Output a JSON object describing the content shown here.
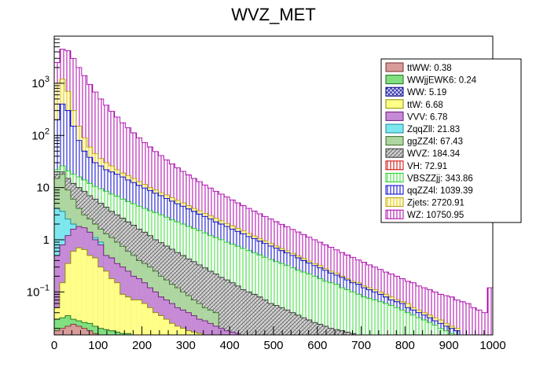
{
  "chart_data": {
    "type": "area",
    "title": "WVZ_MET",
    "xlabel": "",
    "ylabel": "",
    "xlim": [
      0,
      1000
    ],
    "ylim": [
      0.015,
      8000
    ],
    "y_scale": "log",
    "stacked": true,
    "bin_width": 12.5,
    "legend_position": "top-right",
    "x_ticks": [
      "0",
      "100",
      "200",
      "300",
      "400",
      "500",
      "600",
      "700",
      "800",
      "900",
      "1000"
    ],
    "y_ticks": [
      {
        "value": 0.1,
        "base": "10",
        "exp": "−1"
      },
      {
        "value": 1,
        "base": "1",
        "exp": ""
      },
      {
        "value": 10,
        "base": "10",
        "exp": ""
      },
      {
        "value": 100,
        "base": "10",
        "exp": "2"
      },
      {
        "value": 1000,
        "base": "10",
        "exp": "3"
      }
    ],
    "series": [
      {
        "name": "ttWW",
        "yield_label": "0.38",
        "fill": "#d99a9a",
        "stroke": "#7a2e2e",
        "pattern": "solid"
      },
      {
        "name": "WWjjEWK6",
        "yield_label": "0.24",
        "fill": "#80e080",
        "stroke": "#1a6e1a",
        "pattern": "solid"
      },
      {
        "name": "WW",
        "yield_label": "5.19",
        "fill": "#c8c8ff",
        "stroke": "#000080",
        "pattern": "hatch-blue"
      },
      {
        "name": "ttW",
        "yield_label": "6.68",
        "fill": "#ffff88",
        "stroke": "#8a8a00",
        "pattern": "solid"
      },
      {
        "name": "VVV",
        "yield_label": "6.78",
        "fill": "#c78ad6",
        "stroke": "#6a1a7a",
        "pattern": "solid"
      },
      {
        "name": "ZqqZll",
        "yield_label": "21.83",
        "fill": "#7ee6ee",
        "stroke": "#1a8a9a",
        "pattern": "solid"
      },
      {
        "name": "ggZZ4l",
        "yield_label": "67.43",
        "fill": "#aed6a0",
        "stroke": "#3a6a2a",
        "pattern": "solid"
      },
      {
        "name": "WVZ",
        "yield_label": "184.34",
        "fill": "#c9c9c9",
        "stroke": "#333333",
        "pattern": "hatch-grey"
      },
      {
        "name": "VH",
        "yield_label": "72.91",
        "fill": "#ffffff",
        "stroke": "#cc0000",
        "pattern": "vlines-red"
      },
      {
        "name": "VBSZZjj",
        "yield_label": "343.86",
        "fill": "#ffffff",
        "stroke": "#22cc22",
        "pattern": "vlines-green"
      },
      {
        "name": "qqZZ4l",
        "yield_label": "1039.39",
        "fill": "#ffffff",
        "stroke": "#0000cc",
        "pattern": "vlines-blue"
      },
      {
        "name": "Zjets",
        "yield_label": "2720.91",
        "fill": "#fff5c0",
        "stroke": "#b8a000",
        "pattern": "vlines-yellow"
      },
      {
        "name": "WZ",
        "yield_label": "10750.95",
        "fill": "#ffffff",
        "stroke": "#aa00aa",
        "pattern": "vlines-magenta"
      }
    ],
    "stack_tops": {
      "ttWW": [
        0.018,
        0.02,
        0.022,
        0.024,
        0.022,
        0.02,
        0.018,
        0.016,
        0.015
      ],
      "WWjjEWK6": [
        0.03,
        0.032,
        0.035,
        0.03,
        0.028,
        0.026,
        0.025,
        0.022,
        0.02,
        0.019,
        0.018,
        0.017,
        0.016,
        0.016,
        0.015,
        0.015,
        0.015,
        0.015,
        0.015,
        0.015,
        0.015,
        0.015
      ],
      "ttW": [
        0.05,
        0.15,
        0.35,
        0.6,
        0.7,
        0.65,
        0.5,
        0.45,
        0.3,
        0.25,
        0.18,
        0.15,
        0.09,
        0.08,
        0.07,
        0.07,
        0.06,
        0.05,
        0.04,
        0.035,
        0.03,
        0.025,
        0.022,
        0.02,
        0.018,
        0.017,
        0.016,
        0.015
      ],
      "VVV": [
        0.5,
        0.8,
        1.2,
        1.6,
        1.8,
        1.7,
        1.4,
        1.0,
        0.8,
        0.5,
        0.45,
        0.35,
        0.3,
        0.25,
        0.2,
        0.18,
        0.15,
        0.12,
        0.1,
        0.08,
        0.07,
        0.06,
        0.05,
        0.045,
        0.04,
        0.035,
        0.03,
        0.028,
        0.025,
        0.022,
        0.02,
        0.018,
        0.017,
        0.016,
        0.015
      ],
      "ZqqZll": [
        4,
        3.5,
        2.5,
        2.0,
        1.7,
        1.6,
        1.4,
        1.1,
        0.9
      ],
      "ggZZ4l": [
        15,
        18,
        9,
        6,
        4,
        3.0,
        2.5,
        2.0,
        1.6,
        1.3,
        1.1,
        0.9,
        0.75,
        0.6,
        0.5,
        0.4,
        0.35,
        0.3,
        0.25,
        0.2,
        0.17,
        0.14,
        0.12,
        0.1,
        0.085,
        0.07,
        0.06,
        0.05,
        0.045,
        0.04
      ],
      "WVZ": [
        18,
        20,
        15,
        12,
        10,
        8.5,
        7,
        6,
        5,
        4.2,
        3.5,
        3.0,
        2.6,
        2.2,
        1.9,
        1.6,
        1.4,
        1.2,
        1.0,
        0.88,
        0.76,
        0.66,
        0.57,
        0.5,
        0.43,
        0.38,
        0.33,
        0.29,
        0.25,
        0.22,
        0.19,
        0.17,
        0.15,
        0.13,
        0.11,
        0.1,
        0.09,
        0.08,
        0.07,
        0.06,
        0.055,
        0.05,
        0.045,
        0.04,
        0.036,
        0.032,
        0.029,
        0.026,
        0.024,
        0.022,
        0.02,
        0.019,
        0.018,
        0.017,
        0.016,
        0.015
      ],
      "VBSZZjj": [
        22,
        26,
        21,
        18,
        16,
        14,
        12,
        10.5,
        9.5,
        8.5,
        7.5,
        6.8,
        6,
        5.4,
        4.9,
        4.4,
        4.0,
        3.6,
        3.3,
        3.0,
        2.7,
        2.4,
        2.2,
        2.0,
        1.8,
        1.65,
        1.5,
        1.35,
        1.2,
        1.1,
        1.0,
        0.9,
        0.82,
        0.75,
        0.68,
        0.62,
        0.56,
        0.51,
        0.46,
        0.42,
        0.38,
        0.35,
        0.32,
        0.29,
        0.26,
        0.24,
        0.22,
        0.2,
        0.18,
        0.16,
        0.15,
        0.14,
        0.12,
        0.11,
        0.1,
        0.09,
        0.08,
        0.075,
        0.07,
        0.065,
        0.06,
        0.055,
        0.05,
        0.045,
        0.04,
        0.036,
        0.032,
        0.029,
        0.026,
        0.023,
        0.02,
        0.018,
        0.016,
        0.015
      ],
      "qqZZ4l": [
        200,
        400,
        300,
        150,
        80,
        50,
        38,
        30,
        26,
        22,
        20,
        18,
        16,
        14,
        12.5,
        11,
        9.8,
        8.8,
        7.8,
        7.0,
        6.2,
        5.5,
        4.9,
        4.4,
        3.9,
        3.5,
        3.1,
        2.8,
        2.5,
        2.2,
        2.0,
        1.8,
        1.6,
        1.45,
        1.3,
        1.15,
        1.05,
        0.94,
        0.85,
        0.76,
        0.69,
        0.62,
        0.56,
        0.5,
        0.45,
        0.4,
        0.36,
        0.32,
        0.29,
        0.26,
        0.23,
        0.21,
        0.19,
        0.17,
        0.15,
        0.14,
        0.12,
        0.11,
        0.1,
        0.09,
        0.08,
        0.07,
        0.065,
        0.06,
        0.05,
        0.045,
        0.04,
        0.036,
        0.032,
        0.028,
        0.025,
        0.022,
        0.02,
        0.018
      ],
      "Zjets": [
        1000,
        1200,
        700,
        300,
        150,
        90,
        60,
        45,
        36,
        30,
        26,
        22,
        19,
        17,
        15,
        13,
        11.5,
        10,
        9,
        8,
        7.2,
        6.4,
        5.7,
        5.1,
        4.5,
        4.0,
        3.6,
        3.2,
        2.9,
        2.6,
        2.3,
        2.05,
        1.85,
        1.65,
        1.48,
        1.32,
        1.18,
        1.06,
        0.95,
        0.85,
        0.76,
        0.68,
        0.61,
        0.55,
        0.49,
        0.44,
        0.39,
        0.35,
        0.32,
        0.28,
        0.25,
        0.23,
        0.2,
        0.18,
        0.16,
        0.15,
        0.13,
        0.12,
        0.11,
        0.1,
        0.09,
        0.08,
        0.07,
        0.065,
        0.06,
        0.05,
        0.045,
        0.04,
        0.036,
        0.032,
        0.029,
        0.025,
        0.022,
        0.02
      ],
      "WZ": [
        2500,
        4500,
        4200,
        3000,
        2000,
        1400,
        950,
        680,
        500,
        380,
        290,
        225,
        175,
        140,
        112,
        90,
        73,
        60,
        49,
        41,
        34,
        28.5,
        24,
        20.5,
        17.5,
        15,
        13,
        11.2,
        9.8,
        8.5,
        7.5,
        6.6,
        5.8,
        5.1,
        4.5,
        4.0,
        3.55,
        3.15,
        2.8,
        2.5,
        2.22,
        1.98,
        1.77,
        1.58,
        1.41,
        1.26,
        1.12,
        1.0,
        0.9,
        0.8,
        0.72,
        0.64,
        0.57,
        0.51,
        0.46,
        0.41,
        0.37,
        0.33,
        0.3,
        0.27,
        0.24,
        0.22,
        0.2,
        0.18,
        0.16,
        0.15,
        0.13,
        0.12,
        0.11,
        0.1,
        0.09,
        0.085,
        0.08,
        0.07,
        0.065,
        0.06,
        0.05,
        0.045,
        0.04,
        0.12
      ]
    }
  }
}
